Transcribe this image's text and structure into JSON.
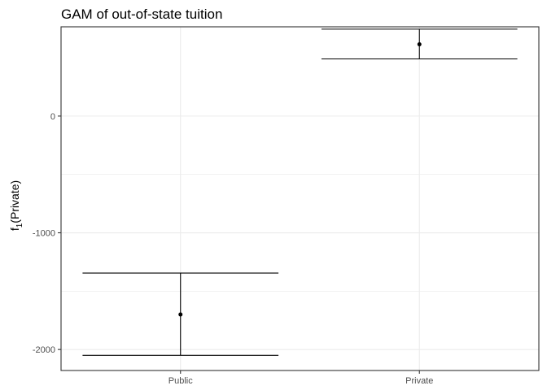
{
  "chart_data": {
    "type": "errorbar",
    "title": "GAM of out-of-state tuition",
    "xlabel": "",
    "ylabel_main": "f",
    "ylabel_sub": "1",
    "ylabel_rest": "(Private)",
    "categories": [
      "Public",
      "Private"
    ],
    "estimates": [
      -1700,
      615
    ],
    "lower": [
      -2050,
      490
    ],
    "upper": [
      -1345,
      745
    ],
    "yticks": [
      0,
      -1000,
      -2000
    ],
    "ylim": [
      -2180,
      765
    ],
    "grid": true,
    "colors": {
      "panel_border": "#333333",
      "grid": "#ebebeb",
      "ink": "#000000"
    }
  }
}
